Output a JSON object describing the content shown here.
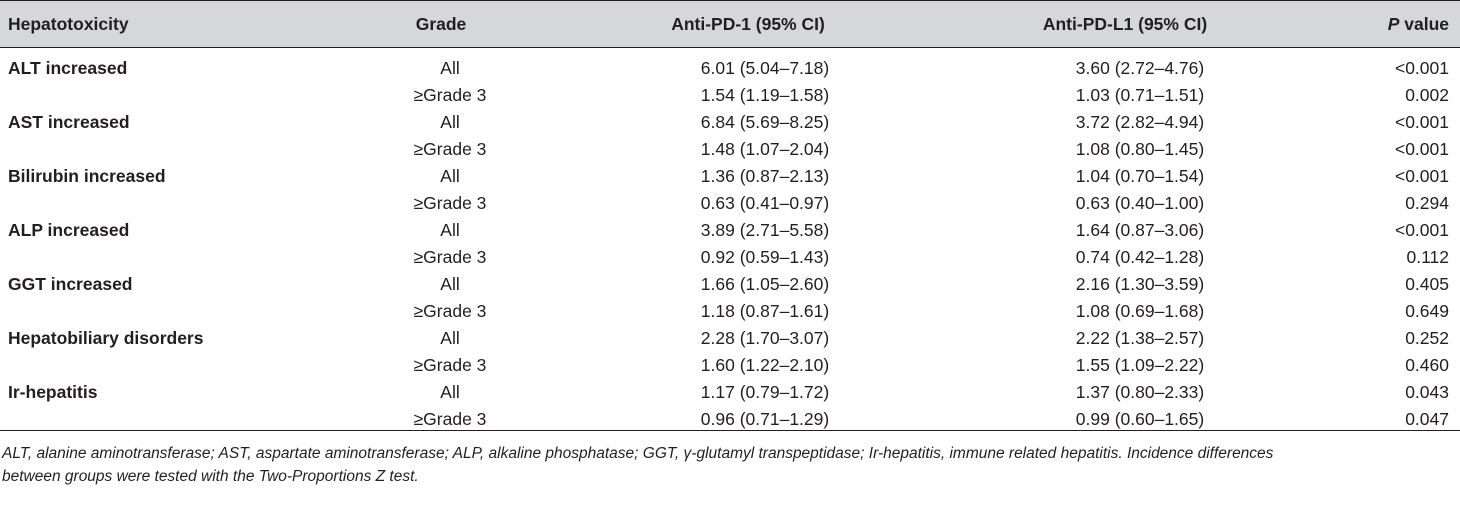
{
  "table": {
    "headers": {
      "hepatotoxicity": "Hepatotoxicity",
      "grade": "Grade",
      "anti_pd1": "Anti-PD-1 (95% CI)",
      "anti_pdl1": "Anti-PD-L1 (95% CI)",
      "p_italic": "P",
      "p_rest": " value"
    },
    "rows": [
      {
        "hepatotoxicity": "ALT increased",
        "grade": "All",
        "anti_pd1": "6.01 (5.04–7.18)",
        "anti_pdl1": "3.60 (2.72–4.76)",
        "p_value": "<0.001"
      },
      {
        "hepatotoxicity": "",
        "grade": "≥Grade 3",
        "anti_pd1": "1.54 (1.19–1.58)",
        "anti_pdl1": "1.03 (0.71–1.51)",
        "p_value": "0.002"
      },
      {
        "hepatotoxicity": "AST increased",
        "grade": "All",
        "anti_pd1": "6.84 (5.69–8.25)",
        "anti_pdl1": "3.72 (2.82–4.94)",
        "p_value": "<0.001"
      },
      {
        "hepatotoxicity": "",
        "grade": "≥Grade 3",
        "anti_pd1": "1.48 (1.07–2.04)",
        "anti_pdl1": "1.08 (0.80–1.45)",
        "p_value": "<0.001"
      },
      {
        "hepatotoxicity": "Bilirubin increased",
        "grade": "All",
        "anti_pd1": "1.36 (0.87–2.13)",
        "anti_pdl1": "1.04 (0.70–1.54)",
        "p_value": "<0.001"
      },
      {
        "hepatotoxicity": "",
        "grade": "≥Grade 3",
        "anti_pd1": "0.63 (0.41–0.97)",
        "anti_pdl1": "0.63 (0.40–1.00)",
        "p_value": "0.294"
      },
      {
        "hepatotoxicity": "ALP increased",
        "grade": "All",
        "anti_pd1": "3.89 (2.71–5.58)",
        "anti_pdl1": "1.64 (0.87–3.06)",
        "p_value": "<0.001"
      },
      {
        "hepatotoxicity": "",
        "grade": "≥Grade 3",
        "anti_pd1": "0.92 (0.59–1.43)",
        "anti_pdl1": "0.74 (0.42–1.28)",
        "p_value": "0.112"
      },
      {
        "hepatotoxicity": "GGT increased",
        "grade": "All",
        "anti_pd1": "1.66 (1.05–2.60)",
        "anti_pdl1": "2.16 (1.30–3.59)",
        "p_value": "0.405"
      },
      {
        "hepatotoxicity": "",
        "grade": "≥Grade 3",
        "anti_pd1": "1.18 (0.87–1.61)",
        "anti_pdl1": "1.08 (0.69–1.68)",
        "p_value": "0.649"
      },
      {
        "hepatotoxicity": "Hepatobiliary disorders",
        "grade": "All",
        "anti_pd1": "2.28 (1.70–3.07)",
        "anti_pdl1": "2.22 (1.38–2.57)",
        "p_value": "0.252"
      },
      {
        "hepatotoxicity": "",
        "grade": "≥Grade 3",
        "anti_pd1": "1.60 (1.22–2.10)",
        "anti_pdl1": "1.55 (1.09–2.22)",
        "p_value": "0.460"
      },
      {
        "hepatotoxicity": "Ir-hepatitis",
        "grade": "All",
        "anti_pd1": "1.17 (0.79–1.72)",
        "anti_pdl1": "1.37 (0.80–2.33)",
        "p_value": "0.043"
      },
      {
        "hepatotoxicity": "",
        "grade": "≥Grade 3",
        "anti_pd1": "0.96 (0.71–1.29)",
        "anti_pdl1": "0.99 (0.60–1.65)",
        "p_value": "0.047"
      }
    ]
  },
  "footnote": {
    "line1": "ALT, alanine aminotransferase; AST, aspartate aminotransferase; ALP, alkaline phosphatase; GGT, γ-glutamyl transpeptidase; Ir-hepatitis, immune related hepatitis. Incidence differences",
    "line2": "between groups were tested with the Two-Proportions Z test."
  }
}
